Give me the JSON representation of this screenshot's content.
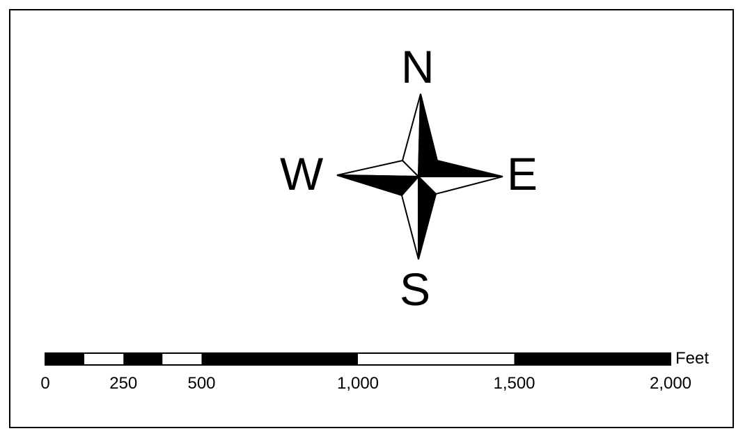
{
  "compass": {
    "north": "N",
    "south": "S",
    "east": "E",
    "west": "W"
  },
  "scale_bar": {
    "unit": "Feet",
    "labels": [
      "0",
      "250",
      "500",
      "1,000",
      "1,500",
      "2,000"
    ],
    "label_values": [
      0,
      250,
      500,
      1000,
      1500,
      2000
    ],
    "max_value": 2000,
    "segments": [
      {
        "from": 0,
        "to": 125,
        "fill": "black"
      },
      {
        "from": 125,
        "to": 250,
        "fill": "white"
      },
      {
        "from": 250,
        "to": 375,
        "fill": "black"
      },
      {
        "from": 375,
        "to": 500,
        "fill": "white"
      },
      {
        "from": 500,
        "to": 1000,
        "fill": "black"
      },
      {
        "from": 1000,
        "to": 1500,
        "fill": "white"
      },
      {
        "from": 1500,
        "to": 2000,
        "fill": "black"
      }
    ]
  },
  "colors": {
    "ink": "#000000",
    "paper": "#ffffff"
  }
}
